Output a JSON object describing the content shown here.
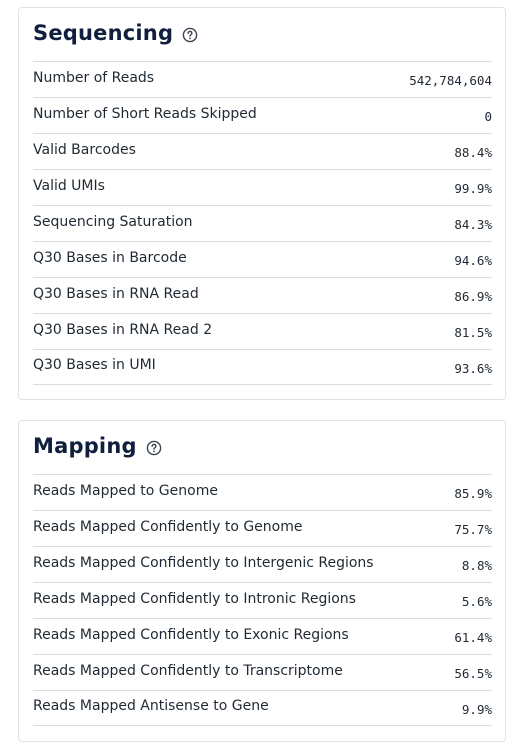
{
  "sequencing": {
    "title": "Sequencing",
    "help_icon": "question-circle-icon",
    "rows": [
      {
        "label": "Number of Reads",
        "value": "542,784,604"
      },
      {
        "label": "Number of Short Reads Skipped",
        "value": "0"
      },
      {
        "label": "Valid Barcodes",
        "value": "88.4%"
      },
      {
        "label": "Valid UMIs",
        "value": "99.9%"
      },
      {
        "label": "Sequencing Saturation",
        "value": "84.3%"
      },
      {
        "label": "Q30 Bases in Barcode",
        "value": "94.6%"
      },
      {
        "label": "Q30 Bases in RNA Read",
        "value": "86.9%"
      },
      {
        "label": "Q30 Bases in RNA Read 2",
        "value": "81.5%"
      },
      {
        "label": "Q30 Bases in UMI",
        "value": "93.6%"
      }
    ]
  },
  "mapping": {
    "title": "Mapping",
    "help_icon": "question-circle-icon",
    "rows": [
      {
        "label": "Reads Mapped to Genome",
        "value": "85.9%"
      },
      {
        "label": "Reads Mapped Confidently to Genome",
        "value": "75.7%"
      },
      {
        "label": "Reads Mapped Confidently to Intergenic Regions",
        "value": "8.8%"
      },
      {
        "label": "Reads Mapped Confidently to Intronic Regions",
        "value": "5.6%"
      },
      {
        "label": "Reads Mapped Confidently to Exonic Regions",
        "value": "61.4%"
      },
      {
        "label": "Reads Mapped Confidently to Transcriptome",
        "value": "56.5%"
      },
      {
        "label": "Reads Mapped Antisense to Gene",
        "value": "9.9%"
      }
    ]
  },
  "colors": {
    "title": "#0f1f3d",
    "text": "#1f2933",
    "divider": "#d9dde2",
    "card_border": "#dfe3e8"
  }
}
